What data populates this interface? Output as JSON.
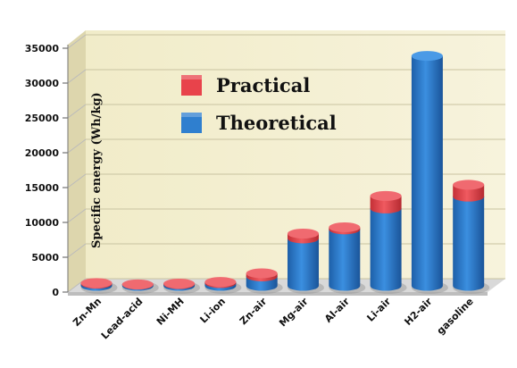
{
  "chart_data": {
    "type": "bar",
    "ylabel": "Specific energy (Wh/kg)",
    "xlabel": "",
    "ylim": [
      0,
      35000
    ],
    "yticks": [
      "0",
      "5000",
      "10000",
      "15000",
      "20000",
      "25000",
      "30000",
      "35000"
    ],
    "ytick_values": [
      0,
      5000,
      10000,
      15000,
      20000,
      25000,
      30000,
      35000
    ],
    "grid": true,
    "legend_position": "top-left",
    "categories": [
      "Zn-Mn",
      "Lead-acid",
      "Ni-MH",
      "Li-ion",
      "Zn-air",
      "Mg-air",
      "Al-air",
      "Li-air",
      "H2-air",
      "gasoline"
    ],
    "series": [
      {
        "name": "Theoretical",
        "color": "#2f7fcf",
        "values": [
          300,
          170,
          240,
          400,
          1350,
          6800,
          8100,
          11100,
          33000,
          12800
        ]
      },
      {
        "name": "Practical",
        "color": "#e8434b",
        "values": [
          100,
          40,
          80,
          160,
          450,
          700,
          300,
          1800,
          0,
          1700
        ]
      }
    ]
  }
}
